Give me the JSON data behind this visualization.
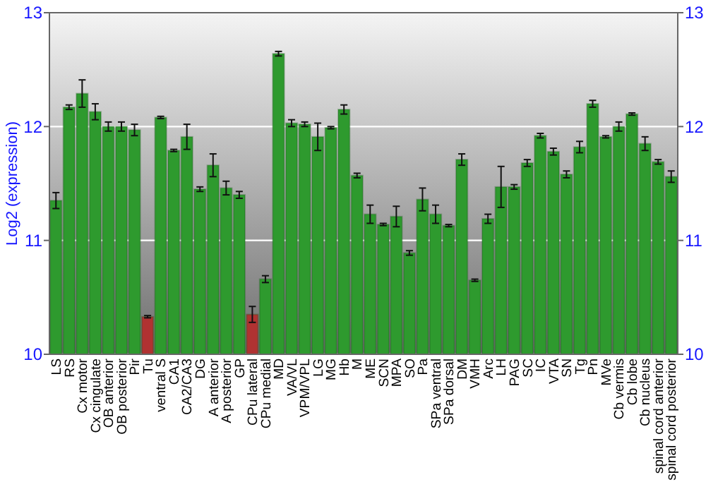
{
  "chart_data": {
    "type": "bar",
    "ylabel": "Log2 (expression)",
    "categories": [
      "LS",
      "RS",
      "Cx motor",
      "Cx cingulate",
      "OB anterior",
      "OB posterior",
      "Pir",
      "Tu",
      "ventral S",
      "CA1",
      "CA2/CA3",
      "DG",
      "A anterior",
      "A posterior",
      "GP",
      "CPu lateral",
      "CPu medial",
      "MD",
      "VA/VL",
      "VPM/VPL",
      "LG",
      "MG",
      "Hb",
      "M",
      "ME",
      "SCN",
      "MPA",
      "SO",
      "Pa",
      "SPa ventral",
      "SPa dorsal",
      "DM",
      "VMH",
      "Arc",
      "LH",
      "PAG",
      "SC",
      "IC",
      "VTA",
      "SN",
      "Tg",
      "Pn",
      "MVe",
      "Cb vermis",
      "Cb lobe",
      "Cb nucleus",
      "spinal cord anterior",
      "spinal cord posterior"
    ],
    "values": [
      11.35,
      12.17,
      12.29,
      12.13,
      12.0,
      12.0,
      11.97,
      10.33,
      12.08,
      11.79,
      11.91,
      11.45,
      11.66,
      11.46,
      11.4,
      10.35,
      10.66,
      12.64,
      12.03,
      12.02,
      11.91,
      11.99,
      12.15,
      11.57,
      11.23,
      11.14,
      11.21,
      10.89,
      11.36,
      11.23,
      11.13,
      11.71,
      10.65,
      11.19,
      11.47,
      11.47,
      11.68,
      11.92,
      11.78,
      11.58,
      11.82,
      12.2,
      11.91,
      12.0,
      12.11,
      11.85,
      11.69,
      11.56
    ],
    "errors": [
      0.07,
      0.02,
      0.12,
      0.07,
      0.04,
      0.04,
      0.05,
      0.01,
      0.01,
      0.01,
      0.11,
      0.02,
      0.1,
      0.06,
      0.03,
      0.07,
      0.03,
      0.02,
      0.03,
      0.02,
      0.12,
      0.01,
      0.04,
      0.02,
      0.08,
      0.01,
      0.09,
      0.02,
      0.1,
      0.08,
      0.01,
      0.05,
      0.01,
      0.04,
      0.18,
      0.02,
      0.03,
      0.02,
      0.03,
      0.03,
      0.05,
      0.03,
      0.01,
      0.04,
      0.01,
      0.06,
      0.02,
      0.05
    ],
    "colors": [
      "#2e9a2e",
      "#2e9a2e",
      "#2e9a2e",
      "#2e9a2e",
      "#2e9a2e",
      "#2e9a2e",
      "#2e9a2e",
      "#b03232",
      "#2e9a2e",
      "#2e9a2e",
      "#2e9a2e",
      "#2e9a2e",
      "#2e9a2e",
      "#2e9a2e",
      "#2e9a2e",
      "#b03232",
      "#2e9a2e",
      "#2e9a2e",
      "#2e9a2e",
      "#2e9a2e",
      "#2e9a2e",
      "#2e9a2e",
      "#2e9a2e",
      "#2e9a2e",
      "#2e9a2e",
      "#2e9a2e",
      "#2e9a2e",
      "#2e9a2e",
      "#2e9a2e",
      "#2e9a2e",
      "#2e9a2e",
      "#2e9a2e",
      "#2e9a2e",
      "#2e9a2e",
      "#2e9a2e",
      "#2e9a2e",
      "#2e9a2e",
      "#2e9a2e",
      "#2e9a2e",
      "#2e9a2e",
      "#2e9a2e",
      "#2e9a2e",
      "#2e9a2e",
      "#2e9a2e",
      "#2e9a2e",
      "#2e9a2e",
      "#2e9a2e",
      "#2e9a2e"
    ],
    "ylim": [
      10,
      13
    ],
    "yticks": [
      10,
      11,
      12,
      13
    ],
    "y2lim": [
      10,
      13
    ],
    "y2ticks": [
      10,
      11,
      12,
      13
    ],
    "grid": "y"
  }
}
